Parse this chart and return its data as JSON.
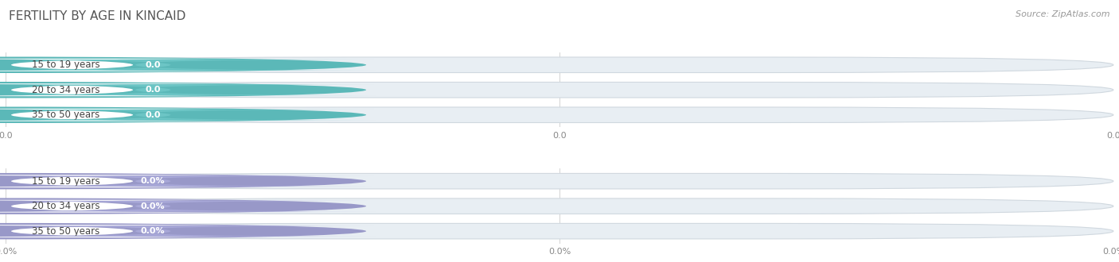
{
  "title": "FERTILITY BY AGE IN KINCAID",
  "source": "Source: ZipAtlas.com",
  "sections": [
    {
      "categories": [
        "15 to 19 years",
        "20 to 34 years",
        "35 to 50 years"
      ],
      "values": [
        0.0,
        0.0,
        0.0
      ],
      "labels": [
        "0.0",
        "0.0",
        "0.0"
      ],
      "bar_color": "#6CC5C5",
      "circle_color": "#5BB8B8",
      "bg_color": "#E8EEF3",
      "bg_border": "#D0D8DF",
      "text_color": "#444444",
      "label_bg": "#6CC5C5",
      "x_tick_labels": [
        "0.0",
        "0.0",
        "0.0"
      ]
    },
    {
      "categories": [
        "15 to 19 years",
        "20 to 34 years",
        "35 to 50 years"
      ],
      "values": [
        0.0,
        0.0,
        0.0
      ],
      "labels": [
        "0.0%",
        "0.0%",
        "0.0%"
      ],
      "bar_color": "#A8A8D8",
      "circle_color": "#9898C8",
      "bg_color": "#E8EEF3",
      "bg_border": "#D0D8DF",
      "text_color": "#444444",
      "label_bg": "#A8A8D8",
      "x_tick_labels": [
        "0.0%",
        "0.0%",
        "0.0%"
      ]
    }
  ],
  "background_color": "#FFFFFF",
  "title_fontsize": 11,
  "source_fontsize": 8,
  "label_fontsize": 8,
  "tick_fontsize": 8,
  "cat_fontsize": 8.5
}
